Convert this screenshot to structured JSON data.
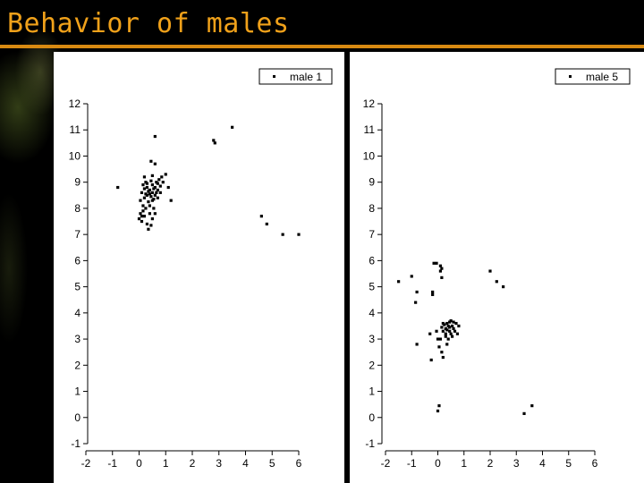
{
  "slide": {
    "title": "Behavior of males"
  },
  "colors": {
    "title": "#f0a11a",
    "rule": "#d88a12",
    "points": "#000000"
  },
  "chart_data": [
    {
      "type": "scatter",
      "title": "",
      "xlabel": "",
      "ylabel": "",
      "xlim": [
        -2,
        6
      ],
      "ylim": [
        -1,
        12
      ],
      "xticks": [
        "-2",
        "-1",
        "0",
        "1",
        "2",
        "3",
        "4",
        "5",
        "6"
      ],
      "yticks": [
        "-1",
        "0",
        "1",
        "2",
        "3",
        "4",
        "5",
        "6",
        "7",
        "8",
        "9",
        "10",
        "11",
        "12"
      ],
      "legend_position": "top-right",
      "series": [
        {
          "name": "male 1",
          "points": [
            [
              -0.8,
              8.8
            ],
            [
              0.6,
              10.75
            ],
            [
              0.45,
              9.8
            ],
            [
              0.6,
              9.7
            ],
            [
              2.8,
              10.6
            ],
            [
              2.85,
              10.5
            ],
            [
              3.5,
              11.1
            ],
            [
              4.6,
              7.7
            ],
            [
              4.8,
              7.4
            ],
            [
              5.4,
              7.0
            ],
            [
              6.0,
              7.0
            ],
            [
              0.0,
              7.6
            ],
            [
              0.1,
              7.5
            ],
            [
              0.2,
              7.7
            ],
            [
              0.3,
              7.4
            ],
            [
              0.35,
              7.2
            ],
            [
              0.45,
              7.35
            ],
            [
              0.5,
              7.6
            ],
            [
              0.6,
              7.8
            ],
            [
              0.15,
              7.9
            ],
            [
              0.25,
              8.0
            ],
            [
              0.4,
              8.1
            ],
            [
              0.55,
              8.0
            ],
            [
              0.05,
              8.3
            ],
            [
              0.2,
              8.4
            ],
            [
              0.3,
              8.5
            ],
            [
              0.4,
              8.55
            ],
            [
              0.5,
              8.6
            ],
            [
              0.6,
              8.5
            ],
            [
              0.7,
              8.4
            ],
            [
              0.1,
              8.6
            ],
            [
              0.2,
              8.75
            ],
            [
              0.3,
              8.8
            ],
            [
              0.4,
              8.7
            ],
            [
              0.5,
              8.9
            ],
            [
              0.6,
              8.8
            ],
            [
              0.7,
              8.7
            ],
            [
              0.8,
              8.6
            ],
            [
              0.25,
              9.0
            ],
            [
              0.45,
              9.05
            ],
            [
              0.65,
              9.0
            ],
            [
              0.9,
              9.0
            ],
            [
              1.0,
              9.3
            ],
            [
              0.85,
              9.2
            ],
            [
              1.1,
              8.8
            ],
            [
              1.2,
              8.3
            ],
            [
              0.15,
              8.1
            ],
            [
              0.55,
              8.35
            ],
            [
              0.35,
              8.25
            ],
            [
              0.75,
              9.1
            ],
            [
              0.1,
              7.7
            ],
            [
              0.4,
              7.8
            ],
            [
              0.2,
              9.2
            ],
            [
              0.5,
              9.25
            ],
            [
              0.3,
              8.95
            ],
            [
              0.55,
              8.75
            ],
            [
              0.65,
              8.6
            ],
            [
              0.25,
              8.55
            ],
            [
              0.45,
              8.45
            ],
            [
              0.35,
              8.65
            ],
            [
              0.5,
              8.3
            ],
            [
              0.7,
              8.95
            ],
            [
              0.8,
              8.85
            ],
            [
              0.15,
              8.9
            ],
            [
              0.05,
              7.8
            ]
          ]
        }
      ]
    },
    {
      "type": "scatter",
      "title": "",
      "xlabel": "",
      "ylabel": "",
      "xlim": [
        -2,
        6
      ],
      "ylim": [
        -1,
        12
      ],
      "xticks": [
        "-2",
        "-1",
        "0",
        "1",
        "2",
        "3",
        "4",
        "5",
        "6"
      ],
      "yticks": [
        "-1",
        "0",
        "1",
        "2",
        "3",
        "4",
        "5",
        "6",
        "7",
        "8",
        "9",
        "10",
        "11",
        "12"
      ],
      "legend_position": "top-right",
      "series": [
        {
          "name": "male 5",
          "points": [
            [
              -1.5,
              5.2
            ],
            [
              -1.0,
              5.4
            ],
            [
              -0.8,
              4.8
            ],
            [
              -0.85,
              4.4
            ],
            [
              -0.15,
              5.9
            ],
            [
              -0.05,
              5.9
            ],
            [
              0.1,
              5.8
            ],
            [
              0.15,
              5.7
            ],
            [
              0.1,
              5.6
            ],
            [
              0.15,
              5.35
            ],
            [
              -0.2,
              4.8
            ],
            [
              -0.2,
              4.7
            ],
            [
              2.0,
              5.6
            ],
            [
              2.25,
              5.2
            ],
            [
              2.5,
              5.0
            ],
            [
              -0.8,
              2.8
            ],
            [
              -0.25,
              2.2
            ],
            [
              -0.3,
              3.2
            ],
            [
              0.05,
              2.7
            ],
            [
              0.15,
              2.5
            ],
            [
              0.2,
              2.3
            ],
            [
              0.0,
              3.0
            ],
            [
              0.1,
              3.0
            ],
            [
              0.2,
              3.3
            ],
            [
              0.3,
              3.4
            ],
            [
              0.35,
              3.6
            ],
            [
              0.4,
              3.5
            ],
            [
              0.45,
              3.3
            ],
            [
              0.5,
              3.2
            ],
            [
              0.55,
              3.1
            ],
            [
              0.6,
              3.4
            ],
            [
              0.3,
              3.2
            ],
            [
              0.4,
              3.0
            ],
            [
              0.25,
              3.55
            ],
            [
              0.35,
              3.35
            ],
            [
              0.45,
              3.65
            ],
            [
              0.55,
              3.5
            ],
            [
              0.65,
              3.3
            ],
            [
              0.7,
              3.6
            ],
            [
              0.3,
              3.1
            ],
            [
              0.5,
              3.7
            ],
            [
              0.2,
              3.6
            ],
            [
              0.6,
              3.65
            ],
            [
              0.8,
              3.5
            ],
            [
              0.75,
              3.2
            ],
            [
              0.35,
              2.8
            ],
            [
              0.45,
              3.45
            ],
            [
              0.15,
              3.45
            ],
            [
              -0.05,
              3.3
            ],
            [
              0.05,
              0.45
            ],
            [
              0.0,
              0.25
            ],
            [
              3.3,
              0.15
            ],
            [
              3.6,
              0.45
            ]
          ]
        }
      ]
    }
  ]
}
